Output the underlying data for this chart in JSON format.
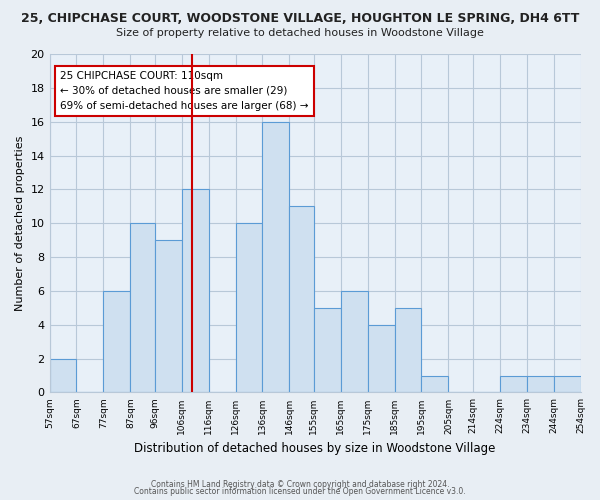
{
  "title_line1": "25, CHIPCHASE COURT, WOODSTONE VILLAGE, HOUGHTON LE SPRING, DH4 6TT",
  "title_line2": "Size of property relative to detached houses in Woodstone Village",
  "xlabel": "Distribution of detached houses by size in Woodstone Village",
  "ylabel": "Number of detached properties",
  "bar_left_edges": [
    57,
    67,
    77,
    87,
    96,
    106,
    116,
    126,
    136,
    146,
    155,
    165,
    175,
    185,
    195,
    205,
    214,
    224,
    234,
    244
  ],
  "bar_widths": [
    10,
    10,
    10,
    9,
    10,
    10,
    10,
    10,
    10,
    9,
    10,
    10,
    10,
    10,
    10,
    9,
    10,
    10,
    10,
    10
  ],
  "bar_heights": [
    2,
    0,
    6,
    10,
    9,
    12,
    0,
    10,
    16,
    11,
    5,
    6,
    4,
    5,
    1,
    0,
    0,
    1,
    1,
    1
  ],
  "tick_labels": [
    "57sqm",
    "67sqm",
    "77sqm",
    "87sqm",
    "96sqm",
    "106sqm",
    "116sqm",
    "126sqm",
    "136sqm",
    "146sqm",
    "155sqm",
    "165sqm",
    "175sqm",
    "185sqm",
    "195sqm",
    "205sqm",
    "214sqm",
    "224sqm",
    "234sqm",
    "244sqm",
    "254sqm"
  ],
  "tick_positions": [
    57,
    67,
    77,
    87,
    96,
    106,
    116,
    126,
    136,
    146,
    155,
    165,
    175,
    185,
    195,
    205,
    214,
    224,
    234,
    244,
    254
  ],
  "bar_color": "#cfe0f0",
  "bar_edge_color": "#5b9bd5",
  "property_line_x": 110,
  "property_line_color": "#cc0000",
  "annotation_title": "25 CHIPCHASE COURT: 110sqm",
  "annotation_line1": "← 30% of detached houses are smaller (29)",
  "annotation_line2": "69% of semi-detached houses are larger (68) →",
  "annotation_box_color": "#ffffff",
  "annotation_box_edge_color": "#cc0000",
  "ylim": [
    0,
    20
  ],
  "yticks": [
    0,
    2,
    4,
    6,
    8,
    10,
    12,
    14,
    16,
    18,
    20
  ],
  "footnote1": "Contains HM Land Registry data © Crown copyright and database right 2024.",
  "footnote2": "Contains public sector information licensed under the Open Government Licence v3.0.",
  "background_color": "#e8eef4",
  "plot_background_color": "#e8f0f8",
  "grid_color": "#b8c8d8"
}
